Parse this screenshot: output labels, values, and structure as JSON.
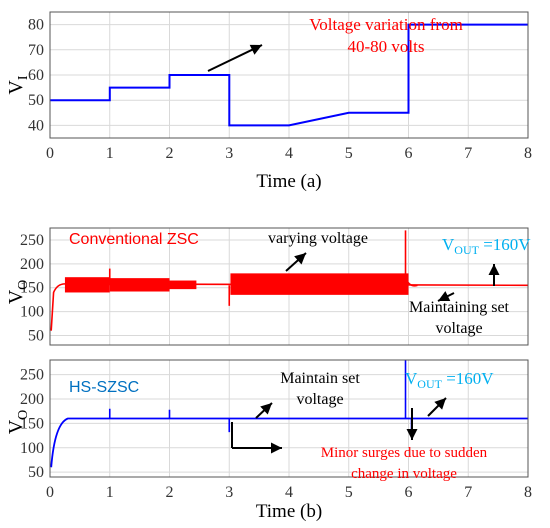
{
  "chart_data": [
    {
      "type": "line",
      "ylabel": "V",
      "ylabel_sub": "I",
      "xlabel": "Time (a)",
      "xlim": [
        0,
        8
      ],
      "ylim": [
        35,
        85
      ],
      "xticks": [
        0,
        1,
        2,
        3,
        4,
        5,
        6,
        7,
        8
      ],
      "yticks": [
        40,
        50,
        60,
        70,
        80
      ],
      "grid": true,
      "series": [
        {
          "color": "#0000ff",
          "x": [
            0,
            1,
            1,
            2,
            2,
            3,
            3,
            4,
            5,
            6,
            6,
            8
          ],
          "y": [
            50,
            50,
            55,
            55,
            60,
            60,
            40,
            40,
            45,
            45,
            80,
            80
          ]
        }
      ],
      "annotations": [
        {
          "text_lines": [
            "Voltage variation from",
            "40-80 volts"
          ],
          "color": "#ff0000"
        }
      ]
    },
    {
      "type": "line",
      "ylabel": "V",
      "ylabel_sub": "O",
      "xlim": [
        0,
        8
      ],
      "ylim": [
        30,
        275
      ],
      "xticks": [
        0,
        1,
        2,
        3,
        4,
        5,
        6,
        7,
        8
      ],
      "yticks": [
        50,
        100,
        150,
        200,
        250
      ],
      "grid": true,
      "series": [
        {
          "name": "Conventional ZSC",
          "color": "#ff0000",
          "baseline": 155,
          "envelope": [
            {
              "x": [
                0.25,
                1.0
              ],
              "low": 140,
              "high": 172
            },
            {
              "x": [
                1.0,
                2.0
              ],
              "low": 142,
              "high": 170
            },
            {
              "x": [
                2.0,
                2.45
              ],
              "low": 147,
              "high": 165
            },
            {
              "x": [
                3.02,
                6.0
              ],
              "low": 135,
              "high": 180
            }
          ],
          "spikes": [
            {
              "x": 1.0,
              "y": 190
            },
            {
              "x": 5.95,
              "y": 270
            }
          ],
          "dips": [
            {
              "x": 3.0,
              "y": 112
            }
          ]
        }
      ],
      "annotations": [
        {
          "text_lines": [
            "Conventional ZSC"
          ],
          "color": "#ff0000"
        },
        {
          "text_lines": [
            "varying voltage"
          ],
          "color": "#000000"
        },
        {
          "text_main": "V",
          "text_sub": "OUT",
          "text_rest": " =160V",
          "color": "#00b0f0"
        },
        {
          "text_lines": [
            "Maintaining set",
            "voltage"
          ],
          "color": "#000000"
        }
      ]
    },
    {
      "type": "line",
      "ylabel": "V",
      "ylabel_sub": "O",
      "xlabel": "Time (b)",
      "xlim": [
        0,
        8
      ],
      "ylim": [
        40,
        280
      ],
      "xticks": [
        0,
        1,
        2,
        3,
        4,
        5,
        6,
        7,
        8
      ],
      "yticks": [
        50,
        100,
        150,
        200,
        250
      ],
      "grid": true,
      "series": [
        {
          "name": "HS-SZSC",
          "color": "#0000ff",
          "baseline": 160,
          "spikes": [
            {
              "x": 1.0,
              "y": 180
            },
            {
              "x": 2.0,
              "y": 178
            },
            {
              "x": 5.95,
              "y": 285
            }
          ],
          "dips": [
            {
              "x": 3.0,
              "y": 132
            },
            {
              "x": 6.05,
              "y": 135
            }
          ]
        }
      ],
      "annotations": [
        {
          "text_lines": [
            "HS-SZSC"
          ],
          "color": "#0070c0"
        },
        {
          "text_lines": [
            "Maintain set",
            "voltage"
          ],
          "color": "#000000"
        },
        {
          "text_main": "V",
          "text_sub": "OUT",
          "text_rest": " =160V",
          "color": "#00b0f0"
        },
        {
          "text_lines": [
            "Minor surges due to sudden",
            "change in voltage"
          ],
          "color": "#ff0000"
        }
      ]
    }
  ]
}
